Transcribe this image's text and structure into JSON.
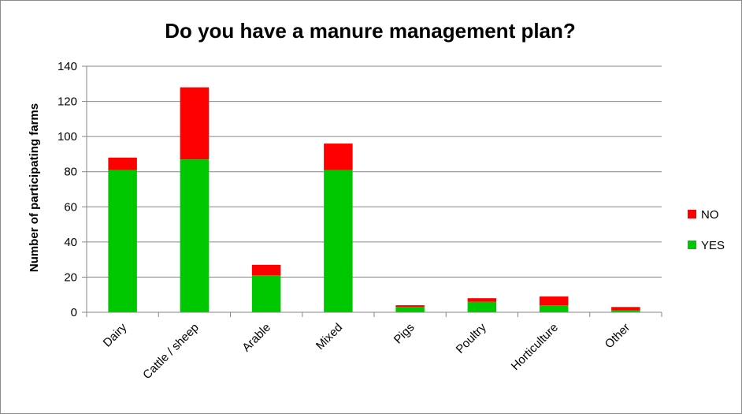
{
  "chart_data": {
    "type": "bar",
    "stacked": true,
    "title": "Do you have a manure management plan?",
    "xlabel": "",
    "ylabel": "Number of participating farms",
    "ylim": [
      0,
      140
    ],
    "yticks": [
      0,
      20,
      40,
      60,
      80,
      100,
      120,
      140
    ],
    "grid": true,
    "legend_position": "right",
    "categories": [
      "Dairy",
      "Cattle / sheep",
      "Arable",
      "Mixed",
      "Pigs",
      "Poultry",
      "Horticulture",
      "Other"
    ],
    "series": [
      {
        "name": "YES",
        "color": "#00c800",
        "values": [
          81,
          87,
          21,
          81,
          3,
          6,
          4,
          1
        ]
      },
      {
        "name": "NO",
        "color": "#ff0000",
        "values": [
          7,
          41,
          6,
          15,
          1,
          2,
          5,
          2
        ]
      }
    ],
    "legend_order": [
      "NO",
      "YES"
    ]
  }
}
